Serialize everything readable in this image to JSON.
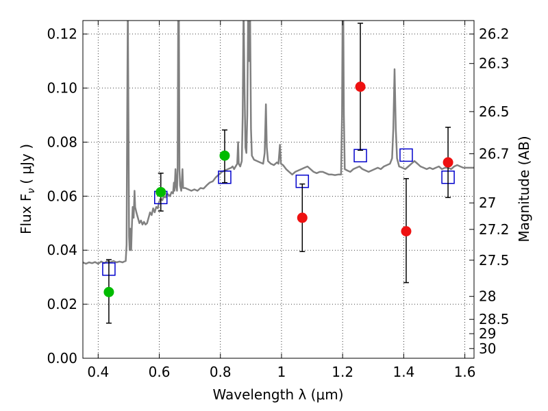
{
  "chart_data": {
    "type": "scatter",
    "xlabel": "Wavelength  λ (μm)",
    "ylabel": "Flux  F",
    "ylabel_sub": "ν",
    "ylabel_unit": "( μJy )",
    "ylabel_right": "Magnitude (AB)",
    "xlim": [
      0.35,
      1.63
    ],
    "ylim": [
      0.0,
      0.125
    ],
    "grid": true,
    "x_ticks": [
      0.4,
      0.6,
      0.8,
      1.0,
      1.2,
      1.4,
      1.6
    ],
    "x_tick_labels": [
      "0.4",
      "0.6",
      "0.8",
      "1",
      "1.2",
      "1.4",
      "1.6"
    ],
    "y_ticks": [
      0.0,
      0.02,
      0.04,
      0.06,
      0.08,
      0.1,
      0.12
    ],
    "y_tick_labels": [
      "0.00",
      "0.02",
      "0.04",
      "0.06",
      "0.08",
      "0.10",
      "0.12"
    ],
    "right_ticks": [
      {
        "label": "26.2",
        "flux": 0.12
      },
      {
        "label": "26.3",
        "flux": 0.1091
      },
      {
        "label": "26.5",
        "flux": 0.0913
      },
      {
        "label": "26.7",
        "flux": 0.0757
      },
      {
        "label": "27",
        "flux": 0.0575
      },
      {
        "label": "27.2",
        "flux": 0.0477
      },
      {
        "label": "27.5",
        "flux": 0.0363
      },
      {
        "label": "28",
        "flux": 0.0229
      },
      {
        "label": "28.5",
        "flux": 0.0144
      },
      {
        "label": "29",
        "flux": 0.0091
      },
      {
        "label": "30",
        "flux": 0.0036
      }
    ],
    "colors": {
      "model": "#808080",
      "detection": "#00bb00",
      "non_detection": "#ee1111",
      "model_band": "#0000cc",
      "errorbar": "#000000"
    },
    "observed": [
      {
        "x": 0.435,
        "y": 0.0245,
        "err_low": 0.013,
        "err_high": 0.0365,
        "kind": "detection"
      },
      {
        "x": 0.605,
        "y": 0.0615,
        "err_low": 0.0545,
        "err_high": 0.0685,
        "kind": "detection"
      },
      {
        "x": 0.814,
        "y": 0.075,
        "err_low": 0.065,
        "err_high": 0.0845,
        "kind": "detection"
      },
      {
        "x": 1.068,
        "y": 0.052,
        "err_low": 0.0395,
        "err_high": 0.0645,
        "kind": "non_detection"
      },
      {
        "x": 1.258,
        "y": 0.1005,
        "err_low": 0.077,
        "err_high": 0.124,
        "kind": "non_detection"
      },
      {
        "x": 1.408,
        "y": 0.047,
        "err_low": 0.028,
        "err_high": 0.0665,
        "kind": "non_detection"
      },
      {
        "x": 1.545,
        "y": 0.0725,
        "err_low": 0.0595,
        "err_high": 0.0855,
        "kind": "non_detection"
      }
    ],
    "model_band_fluxes": [
      {
        "x": 0.435,
        "y": 0.033
      },
      {
        "x": 0.605,
        "y": 0.0595
      },
      {
        "x": 0.814,
        "y": 0.067
      },
      {
        "x": 1.068,
        "y": 0.0655
      },
      {
        "x": 1.258,
        "y": 0.075
      },
      {
        "x": 1.408,
        "y": 0.0752
      },
      {
        "x": 1.545,
        "y": 0.067
      }
    ],
    "model_spectrum": [
      [
        0.35,
        0.0355
      ],
      [
        0.36,
        0.035
      ],
      [
        0.37,
        0.0355
      ],
      [
        0.38,
        0.0352
      ],
      [
        0.39,
        0.0356
      ],
      [
        0.4,
        0.035
      ],
      [
        0.41,
        0.0358
      ],
      [
        0.42,
        0.0352
      ],
      [
        0.43,
        0.036
      ],
      [
        0.44,
        0.0355
      ],
      [
        0.45,
        0.036
      ],
      [
        0.46,
        0.0355
      ],
      [
        0.47,
        0.0358
      ],
      [
        0.48,
        0.0355
      ],
      [
        0.485,
        0.0358
      ],
      [
        0.49,
        0.036
      ],
      [
        0.493,
        0.042
      ],
      [
        0.495,
        0.09
      ],
      [
        0.497,
        0.13
      ],
      [
        0.499,
        0.09
      ],
      [
        0.501,
        0.045
      ],
      [
        0.503,
        0.04
      ],
      [
        0.505,
        0.048
      ],
      [
        0.508,
        0.04
      ],
      [
        0.51,
        0.048
      ],
      [
        0.513,
        0.056
      ],
      [
        0.516,
        0.052
      ],
      [
        0.519,
        0.062
      ],
      [
        0.521,
        0.056
      ],
      [
        0.525,
        0.054
      ],
      [
        0.53,
        0.052
      ],
      [
        0.535,
        0.05
      ],
      [
        0.54,
        0.051
      ],
      [
        0.545,
        0.0495
      ],
      [
        0.55,
        0.0505
      ],
      [
        0.555,
        0.0495
      ],
      [
        0.56,
        0.05
      ],
      [
        0.565,
        0.052
      ],
      [
        0.57,
        0.054
      ],
      [
        0.575,
        0.053
      ],
      [
        0.58,
        0.0555
      ],
      [
        0.585,
        0.054
      ],
      [
        0.59,
        0.056
      ],
      [
        0.595,
        0.0555
      ],
      [
        0.6,
        0.058
      ],
      [
        0.605,
        0.059
      ],
      [
        0.61,
        0.0585
      ],
      [
        0.615,
        0.06
      ],
      [
        0.62,
        0.0595
      ],
      [
        0.625,
        0.061
      ],
      [
        0.63,
        0.0605
      ],
      [
        0.635,
        0.06
      ],
      [
        0.64,
        0.0615
      ],
      [
        0.645,
        0.061
      ],
      [
        0.648,
        0.065
      ],
      [
        0.65,
        0.062
      ],
      [
        0.653,
        0.07
      ],
      [
        0.655,
        0.064
      ],
      [
        0.658,
        0.062
      ],
      [
        0.66,
        0.07
      ],
      [
        0.662,
        0.13
      ],
      [
        0.664,
        0.13
      ],
      [
        0.666,
        0.07
      ],
      [
        0.668,
        0.064
      ],
      [
        0.672,
        0.062
      ],
      [
        0.676,
        0.07
      ],
      [
        0.678,
        0.063
      ],
      [
        0.685,
        0.063
      ],
      [
        0.695,
        0.0625
      ],
      [
        0.705,
        0.062
      ],
      [
        0.715,
        0.0625
      ],
      [
        0.725,
        0.062
      ],
      [
        0.735,
        0.063
      ],
      [
        0.745,
        0.0628
      ],
      [
        0.755,
        0.064
      ],
      [
        0.765,
        0.065
      ],
      [
        0.775,
        0.0655
      ],
      [
        0.785,
        0.067
      ],
      [
        0.795,
        0.068
      ],
      [
        0.805,
        0.069
      ],
      [
        0.815,
        0.0695
      ],
      [
        0.825,
        0.07
      ],
      [
        0.835,
        0.0705
      ],
      [
        0.84,
        0.071
      ],
      [
        0.845,
        0.07
      ],
      [
        0.85,
        0.071
      ],
      [
        0.855,
        0.072
      ],
      [
        0.858,
        0.08
      ],
      [
        0.86,
        0.072
      ],
      [
        0.865,
        0.071
      ],
      [
        0.87,
        0.073
      ],
      [
        0.873,
        0.09
      ],
      [
        0.876,
        0.13
      ],
      [
        0.879,
        0.1
      ],
      [
        0.882,
        0.078
      ],
      [
        0.885,
        0.076
      ],
      [
        0.888,
        0.09
      ],
      [
        0.891,
        0.13
      ],
      [
        0.894,
        0.11
      ],
      [
        0.897,
        0.13
      ],
      [
        0.9,
        0.085
      ],
      [
        0.903,
        0.075
      ],
      [
        0.91,
        0.0735
      ],
      [
        0.92,
        0.073
      ],
      [
        0.93,
        0.0725
      ],
      [
        0.94,
        0.072
      ],
      [
        0.945,
        0.076
      ],
      [
        0.949,
        0.094
      ],
      [
        0.952,
        0.078
      ],
      [
        0.956,
        0.073
      ],
      [
        0.965,
        0.072
      ],
      [
        0.975,
        0.0715
      ],
      [
        0.985,
        0.0725
      ],
      [
        0.99,
        0.072
      ],
      [
        0.995,
        0.079
      ],
      [
        0.998,
        0.072
      ],
      [
        1.005,
        0.0715
      ],
      [
        1.015,
        0.07
      ],
      [
        1.025,
        0.069
      ],
      [
        1.035,
        0.068
      ],
      [
        1.045,
        0.069
      ],
      [
        1.055,
        0.0695
      ],
      [
        1.065,
        0.07
      ],
      [
        1.075,
        0.0705
      ],
      [
        1.085,
        0.071
      ],
      [
        1.095,
        0.07
      ],
      [
        1.105,
        0.069
      ],
      [
        1.115,
        0.0685
      ],
      [
        1.125,
        0.069
      ],
      [
        1.135,
        0.069
      ],
      [
        1.145,
        0.0685
      ],
      [
        1.155,
        0.068
      ],
      [
        1.165,
        0.068
      ],
      [
        1.175,
        0.0678
      ],
      [
        1.185,
        0.068
      ],
      [
        1.195,
        0.068
      ],
      [
        1.198,
        0.09
      ],
      [
        1.2,
        0.13
      ],
      [
        1.202,
        0.13
      ],
      [
        1.204,
        0.09
      ],
      [
        1.207,
        0.07
      ],
      [
        1.215,
        0.0695
      ],
      [
        1.225,
        0.069
      ],
      [
        1.235,
        0.07
      ],
      [
        1.245,
        0.0705
      ],
      [
        1.255,
        0.071
      ],
      [
        1.265,
        0.07
      ],
      [
        1.275,
        0.0695
      ],
      [
        1.285,
        0.069
      ],
      [
        1.295,
        0.0695
      ],
      [
        1.305,
        0.07
      ],
      [
        1.315,
        0.0705
      ],
      [
        1.325,
        0.07
      ],
      [
        1.335,
        0.071
      ],
      [
        1.345,
        0.0715
      ],
      [
        1.355,
        0.072
      ],
      [
        1.362,
        0.074
      ],
      [
        1.366,
        0.085
      ],
      [
        1.37,
        0.107
      ],
      [
        1.374,
        0.085
      ],
      [
        1.378,
        0.074
      ],
      [
        1.385,
        0.071
      ],
      [
        1.395,
        0.0705
      ],
      [
        1.405,
        0.07
      ],
      [
        1.415,
        0.071
      ],
      [
        1.425,
        0.072
      ],
      [
        1.435,
        0.073
      ],
      [
        1.445,
        0.072
      ],
      [
        1.455,
        0.071
      ],
      [
        1.465,
        0.0705
      ],
      [
        1.475,
        0.07
      ],
      [
        1.485,
        0.0705
      ],
      [
        1.495,
        0.07
      ],
      [
        1.505,
        0.0705
      ],
      [
        1.515,
        0.071
      ],
      [
        1.525,
        0.07
      ],
      [
        1.535,
        0.0705
      ],
      [
        1.545,
        0.0705
      ],
      [
        1.555,
        0.07
      ],
      [
        1.565,
        0.071
      ],
      [
        1.575,
        0.0715
      ],
      [
        1.585,
        0.071
      ],
      [
        1.595,
        0.0705
      ],
      [
        1.605,
        0.0705
      ],
      [
        1.615,
        0.0705
      ],
      [
        1.63,
        0.0705
      ]
    ]
  }
}
